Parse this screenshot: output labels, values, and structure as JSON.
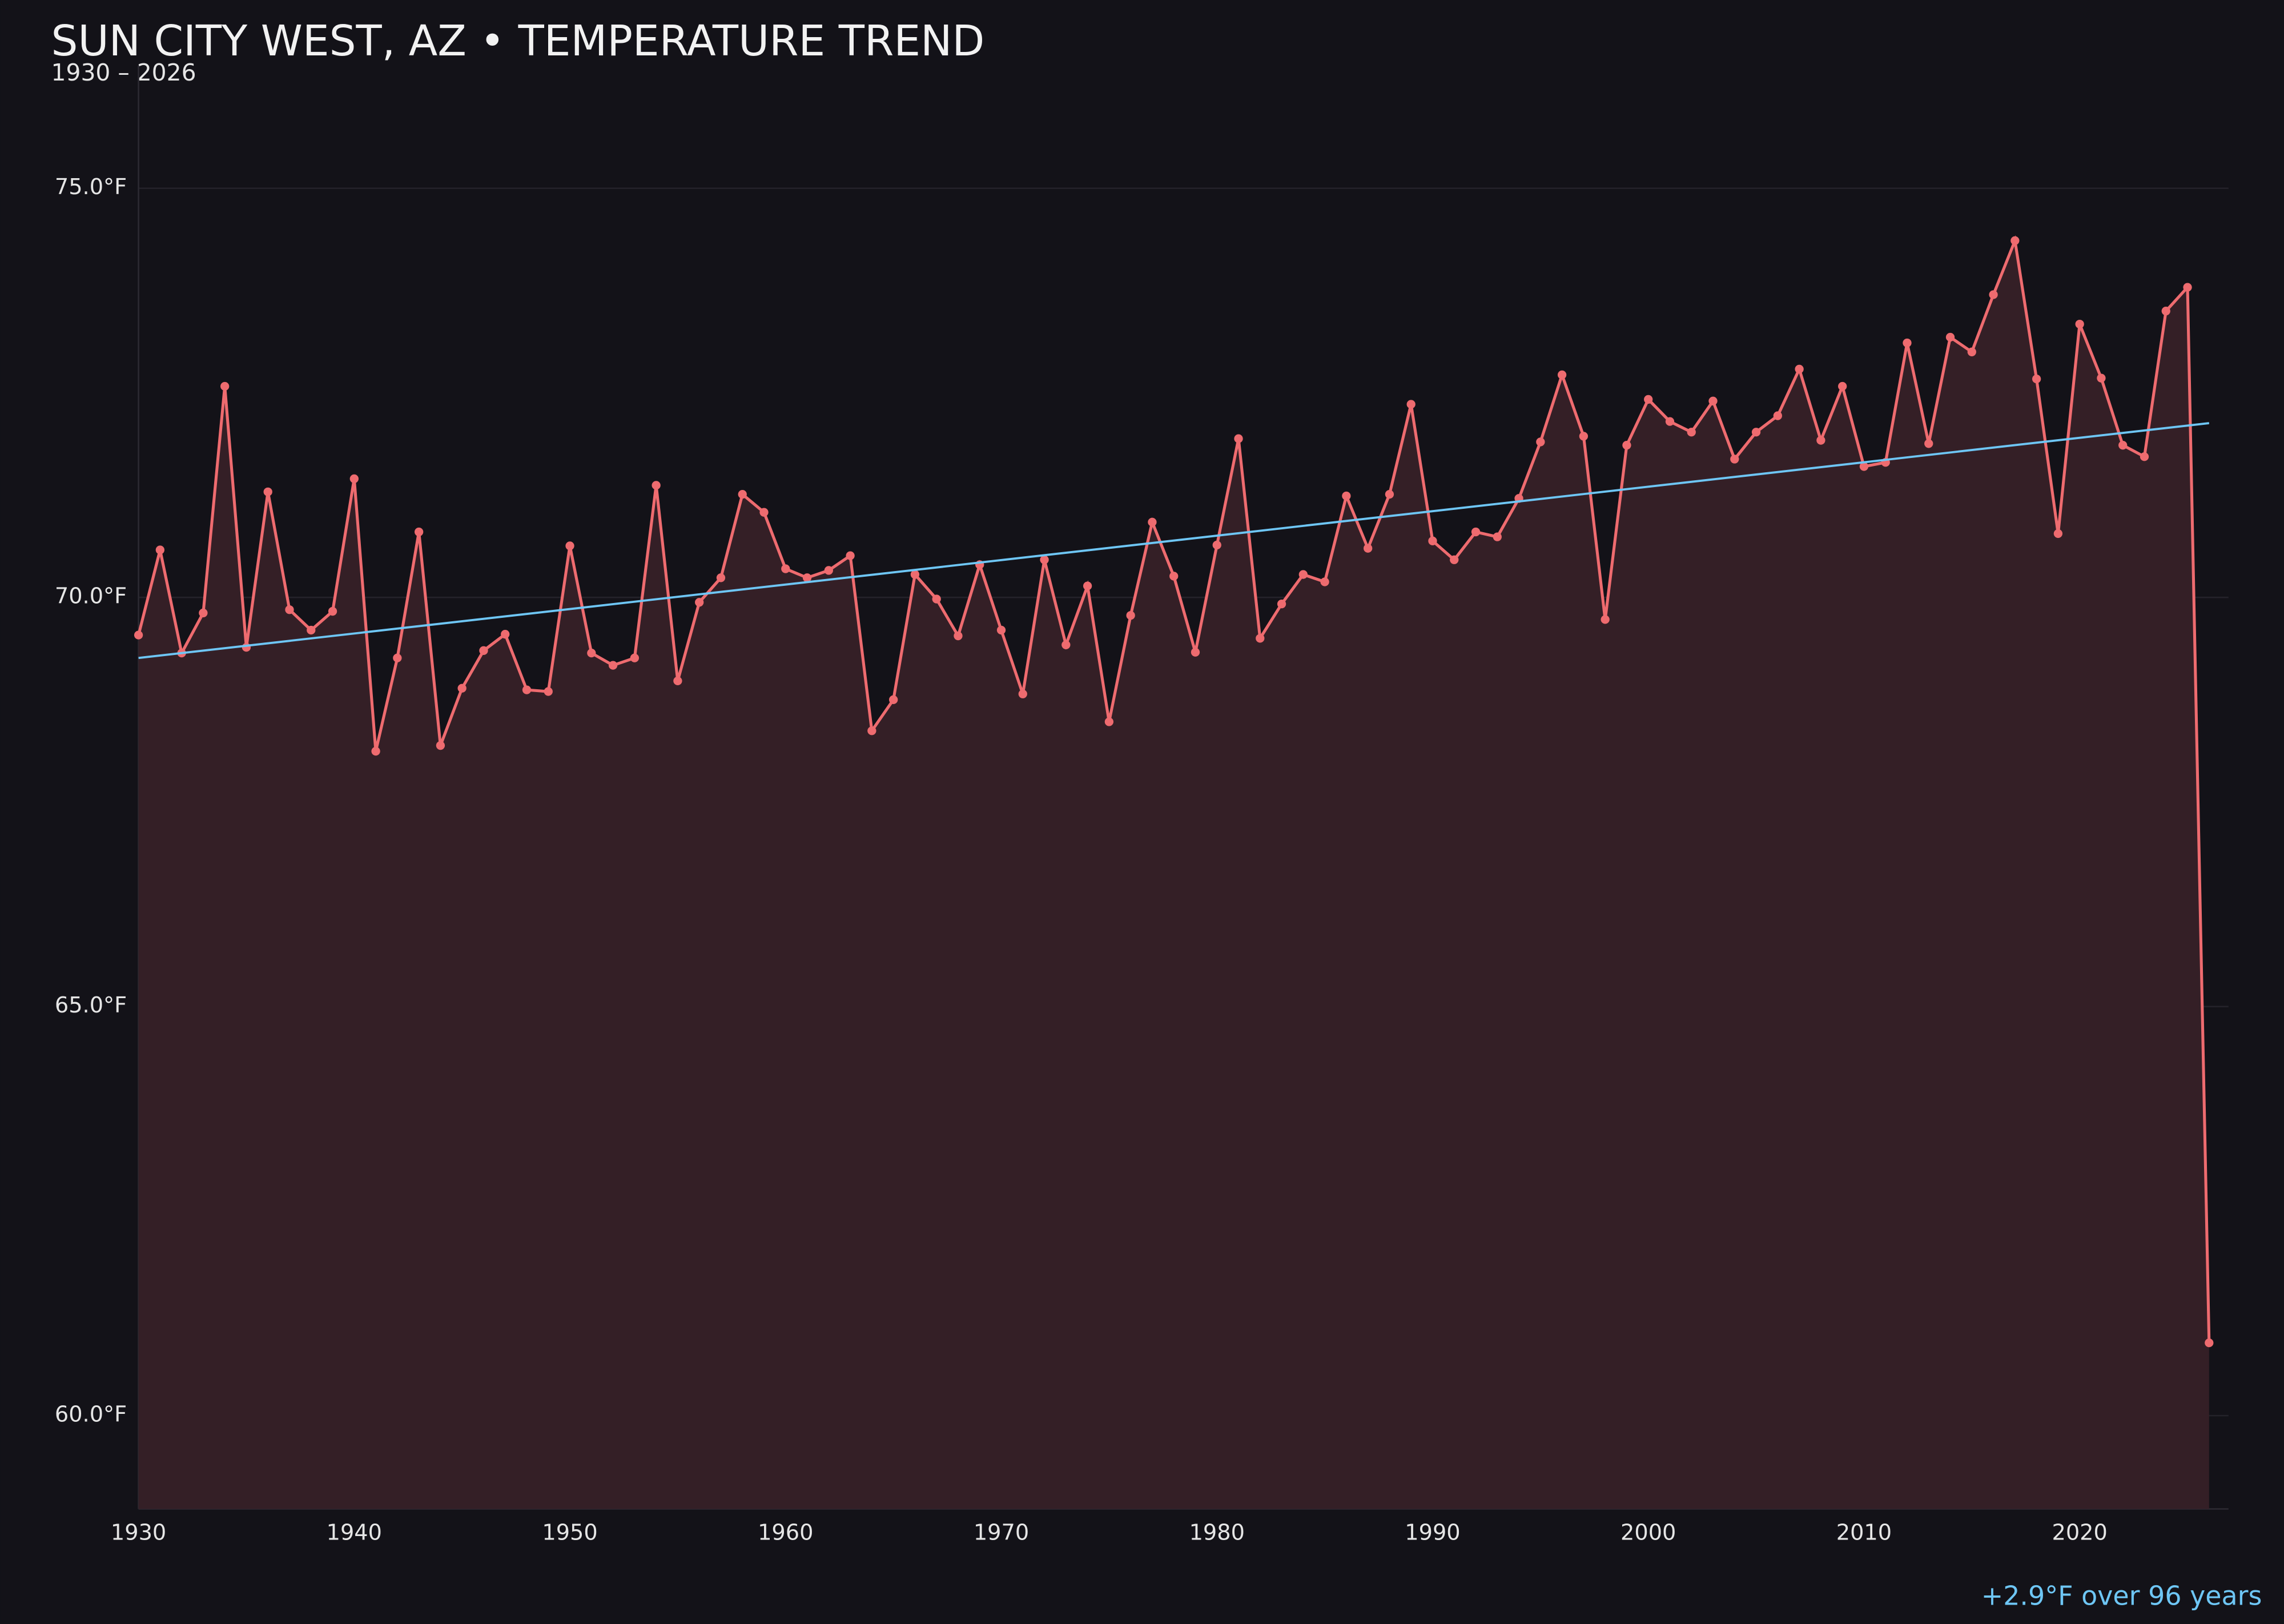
{
  "chart_data": {
    "type": "line",
    "title": "SUN CITY WEST, AZ • TEMPERATURE TREND",
    "subtitle": "1930 – 2026",
    "annotation": "+2.9°F over 96 years",
    "x": [
      1930,
      1931,
      1932,
      1933,
      1934,
      1935,
      1936,
      1937,
      1938,
      1939,
      1940,
      1941,
      1942,
      1943,
      1944,
      1945,
      1946,
      1947,
      1948,
      1949,
      1950,
      1951,
      1952,
      1953,
      1954,
      1955,
      1956,
      1957,
      1958,
      1959,
      1960,
      1961,
      1962,
      1963,
      1964,
      1965,
      1966,
      1967,
      1968,
      1969,
      1970,
      1971,
      1972,
      1973,
      1974,
      1975,
      1976,
      1977,
      1978,
      1979,
      1980,
      1981,
      1982,
      1983,
      1984,
      1985,
      1986,
      1987,
      1988,
      1989,
      1990,
      1991,
      1992,
      1993,
      1994,
      1995,
      1996,
      1997,
      1998,
      1999,
      2000,
      2001,
      2002,
      2003,
      2004,
      2005,
      2006,
      2007,
      2008,
      2009,
      2010,
      2011,
      2012,
      2013,
      2014,
      2015,
      2016,
      2017,
      2018,
      2019,
      2020,
      2021,
      2022,
      2023,
      2024,
      2025,
      2026
    ],
    "series": [
      {
        "color": "#ee6b6f",
        "fill": "#341f26",
        "values": [
          69.54,
          70.58,
          69.32,
          69.81,
          72.58,
          69.39,
          71.29,
          69.85,
          69.6,
          69.83,
          71.45,
          68.12,
          69.26,
          70.8,
          68.19,
          68.89,
          69.35,
          69.55,
          68.87,
          68.85,
          70.63,
          69.32,
          69.17,
          69.26,
          71.37,
          68.98,
          69.94,
          70.24,
          71.26,
          71.04,
          70.35,
          70.24,
          70.33,
          70.51,
          68.37,
          68.75,
          70.28,
          69.98,
          69.53,
          70.4,
          69.6,
          68.82,
          70.46,
          69.42,
          70.14,
          68.48,
          69.78,
          70.92,
          70.26,
          69.33,
          70.64,
          71.94,
          69.5,
          69.92,
          70.28,
          70.19,
          71.24,
          70.6,
          71.26,
          72.36,
          70.69,
          70.46,
          70.8,
          70.74,
          71.21,
          71.9,
          72.72,
          71.97,
          69.73,
          71.86,
          72.42,
          72.15,
          72.02,
          72.4,
          71.69,
          72.02,
          72.22,
          72.79,
          71.92,
          72.58,
          71.6,
          71.65,
          73.11,
          71.88,
          73.18,
          73.0,
          73.7,
          74.36,
          72.67,
          70.78,
          73.34,
          72.68,
          71.86,
          71.72,
          73.5,
          73.79,
          60.89
        ]
      }
    ],
    "trend": {
      "x": [
        1930,
        2026
      ],
      "values": [
        69.26,
        72.13
      ],
      "color": "#6ec6f5"
    },
    "xlim": [
      1930,
      2026.9
    ],
    "ylim": [
      58.86,
      76.5
    ],
    "xticks": [
      1930,
      1940,
      1950,
      1960,
      1970,
      1980,
      1990,
      2000,
      2010,
      2020
    ],
    "yticks": [
      {
        "value": 60,
        "label": "60.0°F"
      },
      {
        "value": 65,
        "label": "65.0°F"
      },
      {
        "value": 70,
        "label": "70.0°F"
      },
      {
        "value": 75,
        "label": "75.0°F"
      }
    ],
    "grid": true
  }
}
